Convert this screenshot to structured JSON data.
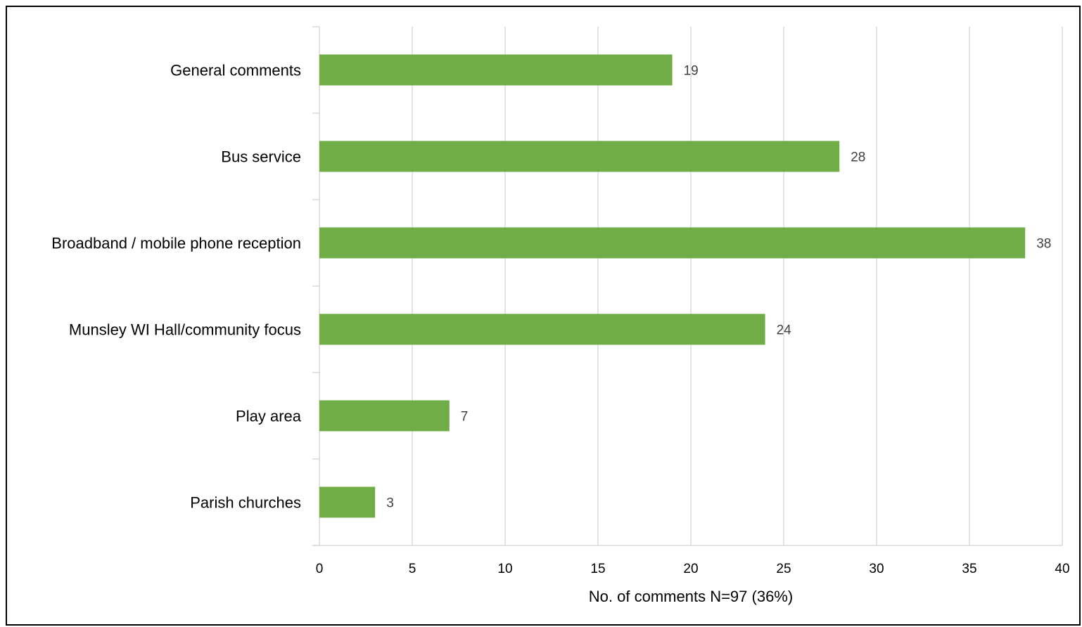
{
  "chart_data": {
    "type": "bar",
    "orientation": "horizontal",
    "categories": [
      "General comments",
      "Bus service",
      "Broadband / mobile phone reception",
      "Munsley WI Hall/community focus",
      "Play area",
      "Parish churches"
    ],
    "values": [
      19,
      28,
      38,
      24,
      7,
      3
    ],
    "xlabel": "No. of comments  N=97 (36%)",
    "ylabel": "",
    "xlim": [
      0,
      40
    ],
    "xticks": [
      0,
      5,
      10,
      15,
      20,
      25,
      30,
      35,
      40
    ],
    "grid": true,
    "data_labels": true,
    "colors": {
      "bar": "#70AD47",
      "grid": "#D9D9D9",
      "data_label": "#404040"
    }
  }
}
